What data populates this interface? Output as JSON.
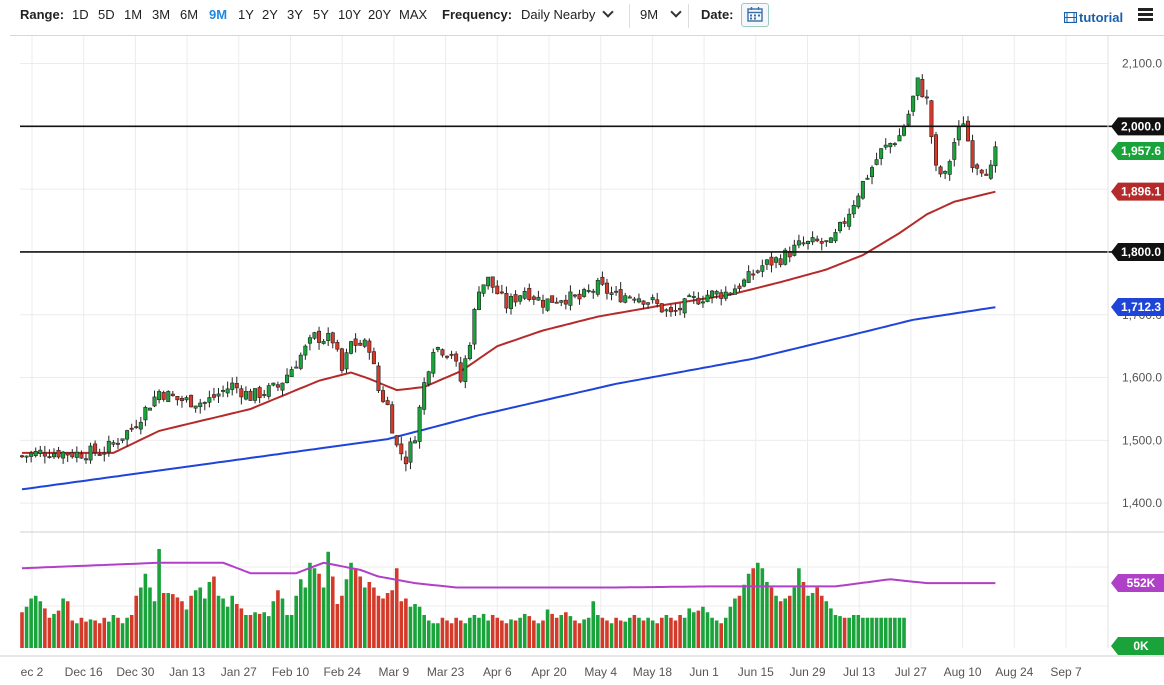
{
  "toolbar": {
    "range_label": "Range:",
    "ranges": [
      "1D",
      "5D",
      "1M",
      "3M",
      "6M",
      "9M",
      "1Y",
      "2Y",
      "3Y",
      "5Y",
      "10Y",
      "20Y",
      "MAX"
    ],
    "active_range": "9M",
    "frequency_label": "Frequency:",
    "frequency_value": "Daily Nearby",
    "period_value": "9M",
    "date_label": "Date:",
    "tutorial_label": "tutorial",
    "icons": [
      "chevron-down-icon",
      "calendar-icon",
      "film-icon",
      "menu-icon"
    ]
  },
  "colors": {
    "up": "#1aa33a",
    "down": "#d43a2a",
    "ma_short": "#b52b2b",
    "ma_long": "#1f44d8",
    "volume_avg": "#b040c8",
    "badge_last": "#1aa33a",
    "badge_ma_short": "#b52b2b",
    "badge_ma_long": "#1f44d8",
    "badge_level": "#111111",
    "badge_volume": "#b040c8"
  },
  "chart_data": {
    "type": "candlestick",
    "x_tick_labels": [
      "ec 2",
      "Dec 16",
      "Dec 30",
      "Jan 13",
      "Jan 27",
      "Feb 10",
      "Feb 24",
      "Mar 9",
      "Mar 23",
      "Apr 6",
      "Apr 20",
      "May 4",
      "May 18",
      "Jun 1",
      "Jun 15",
      "Jun 29",
      "Jul 13",
      "Jul 27",
      "Aug 10",
      "Aug 24",
      "Sep 7"
    ],
    "y_tick_labels": [
      "1,400.0",
      "1,500.0",
      "1,600.0",
      "1,700.0",
      "1,800.0",
      "1,900.0",
      "2,000.0",
      "2,100.0"
    ],
    "ylim": [
      1370,
      2120
    ],
    "horizontal_lines": [
      {
        "value": 2000,
        "label": "2,000.0"
      },
      {
        "value": 1800,
        "label": "1,800.0"
      }
    ],
    "badges": {
      "last_price": {
        "value": 1957.6,
        "label": "1,957.6"
      },
      "ma_short": {
        "value": 1896.1,
        "label": "1,896.1"
      },
      "ma_long": {
        "value": 1712.3,
        "label": "1,712.3"
      },
      "volume_avg": {
        "label": "552K"
      },
      "volume_zero": {
        "label": "0K"
      }
    },
    "price_anchors": [
      [
        0,
        1475
      ],
      [
        5,
        1482
      ],
      [
        12,
        1479
      ],
      [
        18,
        1483
      ],
      [
        24,
        1520
      ],
      [
        30,
        1578
      ],
      [
        34,
        1565
      ],
      [
        40,
        1560
      ],
      [
        46,
        1588
      ],
      [
        50,
        1570
      ],
      [
        56,
        1585
      ],
      [
        60,
        1625
      ],
      [
        64,
        1665
      ],
      [
        68,
        1660
      ],
      [
        70,
        1610
      ],
      [
        72,
        1655
      ],
      [
        76,
        1650
      ],
      [
        78,
        1580
      ],
      [
        80,
        1555
      ],
      [
        82,
        1490
      ],
      [
        84,
        1470
      ],
      [
        86,
        1510
      ],
      [
        88,
        1590
      ],
      [
        90,
        1650
      ],
      [
        94,
        1640
      ],
      [
        96,
        1595
      ],
      [
        98,
        1660
      ],
      [
        100,
        1745
      ],
      [
        102,
        1755
      ],
      [
        106,
        1715
      ],
      [
        110,
        1740
      ],
      [
        114,
        1720
      ],
      [
        118,
        1728
      ],
      [
        122,
        1725
      ],
      [
        126,
        1745
      ],
      [
        130,
        1730
      ],
      [
        134,
        1732
      ],
      [
        138,
        1720
      ],
      [
        142,
        1700
      ],
      [
        146,
        1720
      ],
      [
        150,
        1732
      ],
      [
        154,
        1735
      ],
      [
        158,
        1752
      ],
      [
        162,
        1778
      ],
      [
        166,
        1790
      ],
      [
        170,
        1810
      ],
      [
        174,
        1815
      ],
      [
        177,
        1812
      ],
      [
        180,
        1850
      ],
      [
        184,
        1910
      ],
      [
        188,
        1960
      ],
      [
        192,
        1985
      ],
      [
        194,
        2020
      ],
      [
        196,
        2070
      ],
      [
        198,
        2040
      ],
      [
        200,
        1930
      ],
      [
        202,
        1920
      ],
      [
        204,
        1975
      ],
      [
        206,
        2010
      ],
      [
        208,
        1945
      ],
      [
        210,
        1935
      ],
      [
        212,
        1930
      ],
      [
        213,
        1957
      ]
    ],
    "ma_short_anchors": [
      [
        0,
        1480
      ],
      [
        20,
        1480
      ],
      [
        30,
        1515
      ],
      [
        50,
        1550
      ],
      [
        65,
        1595
      ],
      [
        72,
        1608
      ],
      [
        76,
        1598
      ],
      [
        82,
        1580
      ],
      [
        88,
        1585
      ],
      [
        96,
        1610
      ],
      [
        104,
        1650
      ],
      [
        114,
        1675
      ],
      [
        126,
        1697
      ],
      [
        140,
        1715
      ],
      [
        155,
        1732
      ],
      [
        166,
        1752
      ],
      [
        176,
        1772
      ],
      [
        184,
        1795
      ],
      [
        192,
        1830
      ],
      [
        198,
        1860
      ],
      [
        204,
        1880
      ],
      [
        213,
        1896
      ]
    ],
    "ma_long_anchors": [
      [
        0,
        1422
      ],
      [
        40,
        1462
      ],
      [
        80,
        1502
      ],
      [
        100,
        1540
      ],
      [
        130,
        1590
      ],
      [
        160,
        1630
      ],
      [
        180,
        1665
      ],
      [
        195,
        1692
      ],
      [
        213,
        1712
      ]
    ],
    "volume_avg_anchors": [
      [
        0,
        1.45
      ],
      [
        30,
        1.55
      ],
      [
        44,
        1.55
      ],
      [
        50,
        1.36
      ],
      [
        60,
        1.36
      ],
      [
        66,
        1.55
      ],
      [
        74,
        1.42
      ],
      [
        78,
        1.3
      ],
      [
        86,
        1.18
      ],
      [
        95,
        1.1
      ],
      [
        130,
        1.1
      ],
      [
        150,
        1.12
      ],
      [
        178,
        1.12
      ],
      [
        190,
        1.25
      ],
      [
        198,
        1.18
      ],
      [
        213,
        1.18
      ]
    ],
    "volume_ylim": [
      0,
      2.0
    ],
    "volume_bar_values": [
      0.65,
      0.75,
      0.9,
      0.95,
      0.85,
      0.72,
      0.55,
      0.62,
      0.68,
      0.9,
      0.85,
      0.5,
      0.45,
      0.55,
      0.48,
      0.52,
      0.5,
      0.45,
      0.55,
      0.48,
      0.6,
      0.55,
      0.45,
      0.55,
      0.6,
      0.95,
      1.1,
      1.35,
      1.1,
      0.85,
      1.8,
      1.0,
      1.0,
      0.98,
      0.92,
      0.85,
      0.7,
      0.95,
      1.05,
      1.1,
      0.9,
      1.2,
      1.3,
      0.95,
      0.9,
      0.75,
      0.95,
      0.8,
      0.72,
      0.6,
      0.6,
      0.65,
      0.62,
      0.65,
      0.58,
      0.85,
      1.05,
      0.9,
      0.6,
      0.6,
      0.95,
      1.25,
      1.1,
      1.55,
      1.45,
      1.35,
      1.1,
      1.75,
      1.3,
      0.8,
      0.95,
      1.25,
      1.55,
      1.45,
      1.3,
      1.1,
      1.2,
      1.1,
      0.95,
      0.9,
      1.0,
      1.05,
      1.45,
      0.85,
      0.9,
      0.75,
      0.8,
      0.75,
      0.6,
      0.5,
      0.45,
      0.45,
      0.55,
      0.5,
      0.45,
      0.55,
      0.5,
      0.45,
      0.55,
      0.6,
      0.55,
      0.62,
      0.5,
      0.6,
      0.55,
      0.5,
      0.45,
      0.52,
      0.5,
      0.55,
      0.62,
      0.58,
      0.5,
      0.45,
      0.5,
      0.7,
      0.62,
      0.55,
      0.6,
      0.65,
      0.58,
      0.5,
      0.45,
      0.52,
      0.55,
      0.85,
      0.6,
      0.55,
      0.5,
      0.45,
      0.55,
      0.5,
      0.48,
      0.55,
      0.6,
      0.55,
      0.5,
      0.55,
      0.5,
      0.45,
      0.55,
      0.6,
      0.55,
      0.5,
      0.6,
      0.55,
      0.72,
      0.65,
      0.68,
      0.75,
      0.65,
      0.55,
      0.5,
      0.45,
      0.55,
      0.75,
      0.9,
      0.95,
      1.15,
      1.35,
      1.45,
      1.55,
      1.45,
      1.2,
      1.1,
      0.95,
      0.85,
      0.9,
      0.95,
      1.1,
      1.45,
      1.2,
      0.95,
      1.0,
      1.1,
      0.95,
      0.85,
      0.72,
      0.6,
      0.58,
      0.55,
      0.55,
      0.6,
      0.6,
      0.55,
      0.55,
      0.55,
      0.55,
      0.55,
      0.55,
      0.55,
      0.55,
      0.55,
      0.55
    ]
  }
}
